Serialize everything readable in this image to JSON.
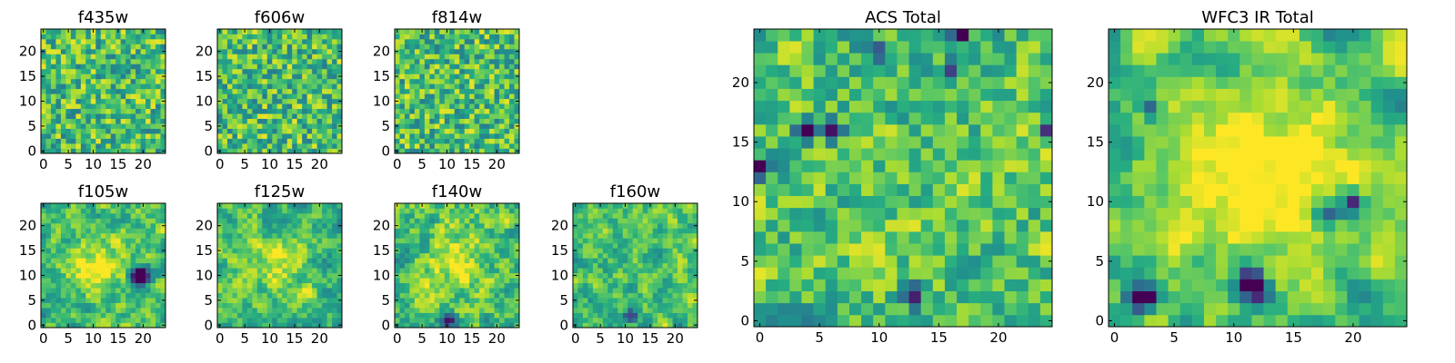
{
  "chart_data": [
    {
      "type": "heatmap",
      "title": "f435w",
      "colormap": "viridis",
      "grid": false,
      "x_ticks": [
        "0",
        "5",
        "10",
        "15",
        "20"
      ],
      "y_ticks": [
        "0",
        "5",
        "10",
        "15",
        "20"
      ],
      "xlim": [
        -0.5,
        24.5
      ],
      "ylim": [
        -0.5,
        24.5
      ],
      "size": 25,
      "seed": 11,
      "smooth": 0,
      "spots": []
    },
    {
      "type": "heatmap",
      "title": "f606w",
      "colormap": "viridis",
      "grid": false,
      "x_ticks": [
        "0",
        "5",
        "10",
        "15",
        "20"
      ],
      "y_ticks": [
        "0",
        "5",
        "10",
        "15",
        "20"
      ],
      "xlim": [
        -0.5,
        24.5
      ],
      "ylim": [
        -0.5,
        24.5
      ],
      "size": 25,
      "seed": 23,
      "smooth": 0,
      "spots": []
    },
    {
      "type": "heatmap",
      "title": "f814w",
      "colormap": "viridis",
      "grid": false,
      "x_ticks": [
        "0",
        "5",
        "10",
        "15",
        "20"
      ],
      "y_ticks": [
        "0",
        "5",
        "10",
        "15",
        "20"
      ],
      "xlim": [
        -0.5,
        24.5
      ],
      "ylim": [
        -0.5,
        24.5
      ],
      "size": 25,
      "seed": 37,
      "smooth": 0,
      "spots": []
    },
    {
      "type": "heatmap",
      "title": "f105w",
      "colormap": "viridis",
      "grid": false,
      "x_ticks": [
        "0",
        "5",
        "10",
        "15",
        "20"
      ],
      "y_ticks": [
        "0",
        "5",
        "10",
        "15",
        "20"
      ],
      "xlim": [
        -0.5,
        24.5
      ],
      "ylim": [
        -0.5,
        24.5
      ],
      "size": 25,
      "seed": 41,
      "smooth": 1,
      "spots": [
        {
          "x": 11,
          "y": 12,
          "r": 4,
          "amp": 0.35
        },
        {
          "x": 19,
          "y": 10,
          "r": 1.2,
          "amp": -0.6
        },
        {
          "x": 20,
          "y": 10,
          "r": 1.2,
          "amp": -0.6
        }
      ]
    },
    {
      "type": "heatmap",
      "title": "f125w",
      "colormap": "viridis",
      "grid": false,
      "x_ticks": [
        "0",
        "5",
        "10",
        "15",
        "20"
      ],
      "y_ticks": [
        "0",
        "5",
        "10",
        "15",
        "20"
      ],
      "xlim": [
        -0.5,
        24.5
      ],
      "ylim": [
        -0.5,
        24.5
      ],
      "size": 25,
      "seed": 53,
      "smooth": 1,
      "spots": [
        {
          "x": 12,
          "y": 12,
          "r": 4,
          "amp": 0.2
        }
      ]
    },
    {
      "type": "heatmap",
      "title": "f140w",
      "colormap": "viridis",
      "grid": false,
      "x_ticks": [
        "0",
        "5",
        "10",
        "15",
        "20"
      ],
      "y_ticks": [
        "0",
        "5",
        "10",
        "15",
        "20"
      ],
      "xlim": [
        -0.5,
        24.5
      ],
      "ylim": [
        -0.5,
        24.5
      ],
      "size": 25,
      "seed": 67,
      "smooth": 1,
      "spots": [
        {
          "x": 11,
          "y": 13,
          "r": 4,
          "amp": 0.25
        },
        {
          "x": 10,
          "y": 1,
          "r": 1,
          "amp": -0.6
        }
      ]
    },
    {
      "type": "heatmap",
      "title": "f160w",
      "colormap": "viridis",
      "grid": false,
      "x_ticks": [
        "0",
        "5",
        "10",
        "15",
        "20"
      ],
      "y_ticks": [
        "0",
        "5",
        "10",
        "15",
        "20"
      ],
      "xlim": [
        -0.5,
        24.5
      ],
      "ylim": [
        -0.5,
        24.5
      ],
      "size": 25,
      "seed": 79,
      "smooth": 1,
      "spots": [
        {
          "x": 11,
          "y": 2,
          "r": 1,
          "amp": -0.6
        }
      ]
    },
    {
      "type": "heatmap",
      "title": "ACS Total",
      "colormap": "viridis",
      "grid": false,
      "x_ticks": [
        "0",
        "5",
        "10",
        "15",
        "20"
      ],
      "y_ticks": [
        "0",
        "5",
        "10",
        "15",
        "20"
      ],
      "xlim": [
        -0.5,
        24.5
      ],
      "ylim": [
        -0.5,
        24.5
      ],
      "size": 25,
      "seed": 97,
      "smooth": 0.5,
      "spots": [
        {
          "x": 4,
          "y": 16,
          "r": 0.6,
          "amp": -0.7
        },
        {
          "x": 6,
          "y": 16,
          "r": 0.6,
          "amp": -0.7
        },
        {
          "x": 0,
          "y": 13,
          "r": 0.6,
          "amp": -0.7
        },
        {
          "x": 17,
          "y": 24,
          "r": 0.6,
          "amp": -0.7
        },
        {
          "x": 10,
          "y": 23,
          "r": 0.6,
          "amp": -0.6
        },
        {
          "x": 16,
          "y": 21,
          "r": 0.6,
          "amp": -0.7
        },
        {
          "x": 24,
          "y": 16,
          "r": 0.6,
          "amp": -0.7
        },
        {
          "x": 13,
          "y": 2,
          "r": 0.6,
          "amp": -0.6
        }
      ]
    },
    {
      "type": "heatmap",
      "title": "WFC3 IR Total",
      "colormap": "viridis",
      "grid": false,
      "x_ticks": [
        "0",
        "5",
        "10",
        "15",
        "20"
      ],
      "y_ticks": [
        "0",
        "5",
        "10",
        "15",
        "20"
      ],
      "xlim": [
        -0.5,
        24.5
      ],
      "ylim": [
        -0.5,
        24.5
      ],
      "size": 25,
      "seed": 113,
      "smooth": 1.5,
      "spots": [
        {
          "x": 12,
          "y": 12,
          "r": 6,
          "amp": 0.35
        },
        {
          "x": 3,
          "y": 2,
          "r": 0.8,
          "amp": -0.7
        },
        {
          "x": 2,
          "y": 2,
          "r": 0.8,
          "amp": -0.7
        },
        {
          "x": 11,
          "y": 3,
          "r": 0.9,
          "amp": -0.7
        },
        {
          "x": 12,
          "y": 3,
          "r": 0.9,
          "amp": -0.6
        },
        {
          "x": 20,
          "y": 10,
          "r": 0.7,
          "amp": -0.7
        },
        {
          "x": 18,
          "y": 9,
          "r": 0.7,
          "amp": -0.6
        },
        {
          "x": 3,
          "y": 18,
          "r": 0.7,
          "amp": -0.6
        }
      ]
    }
  ]
}
